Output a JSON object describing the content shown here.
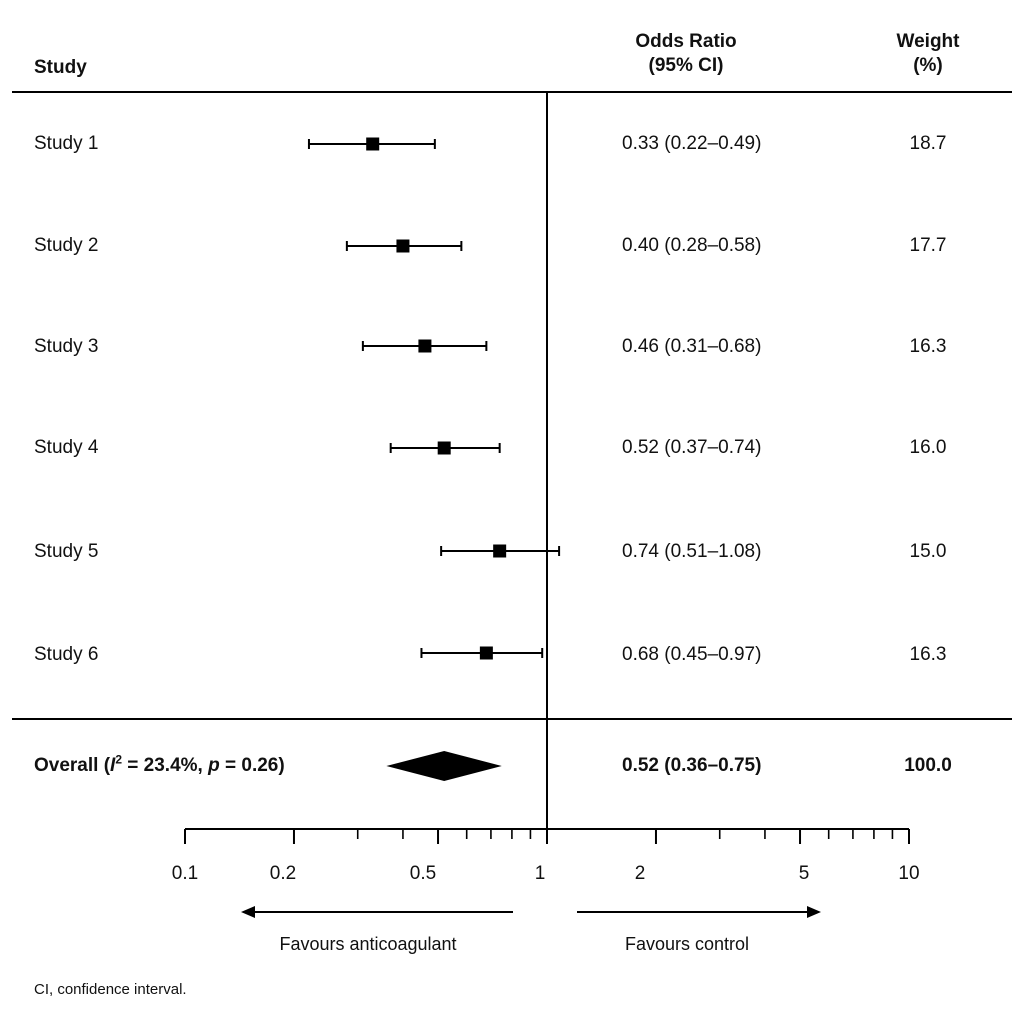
{
  "header": {
    "study_label": "Study",
    "or_label_line1": "Odds Ratio",
    "or_label_line2": "(95% CI)",
    "weight_label_line1": "Weight",
    "weight_label_line2": "(%)"
  },
  "chart_data": {
    "type": "forest",
    "x_scale": "log",
    "xlim": [
      0.1,
      10
    ],
    "reference_line": 1,
    "tick_labels": [
      "0.1",
      "0.2",
      "0.5",
      "1",
      "2",
      "5",
      "10"
    ],
    "tick_values": [
      0.1,
      0.2,
      0.5,
      1,
      2,
      5,
      10
    ],
    "studies": [
      {
        "label": "Study 1",
        "or": 0.33,
        "lower": 0.22,
        "upper": 0.49,
        "or_text": "0.33 (0.22–0.49)",
        "weight": 18.7,
        "weight_text": "18.7"
      },
      {
        "label": "Study 2",
        "or": 0.4,
        "lower": 0.28,
        "upper": 0.58,
        "or_text": "0.40 (0.28–0.58)",
        "weight": 17.7,
        "weight_text": "17.7"
      },
      {
        "label": "Study 3",
        "or": 0.46,
        "lower": 0.31,
        "upper": 0.68,
        "or_text": "0.46 (0.31–0.68)",
        "weight": 16.3,
        "weight_text": "16.3"
      },
      {
        "label": "Study 4",
        "or": 0.52,
        "lower": 0.37,
        "upper": 0.74,
        "or_text": "0.52 (0.37–0.74)",
        "weight": 16.0,
        "weight_text": "16.0"
      },
      {
        "label": "Study 5",
        "or": 0.74,
        "lower": 0.51,
        "upper": 1.08,
        "or_text": "0.74 (0.51–1.08)",
        "weight": 15.0,
        "weight_text": "15.0"
      },
      {
        "label": "Study 6",
        "or": 0.68,
        "lower": 0.45,
        "upper": 0.97,
        "or_text": "0.68 (0.45–0.97)",
        "weight": 16.3,
        "weight_text": "16.3"
      }
    ],
    "overall": {
      "label_prefix": "Overall (",
      "label_i": "I",
      "label_sup": "2",
      "label_mid": " = 23.4%, ",
      "label_p": "p",
      "label_suffix": " = 0.26)",
      "i2": 23.4,
      "p": 0.26,
      "or": 0.52,
      "lower": 0.36,
      "upper": 0.75,
      "or_text": "0.52 (0.36–0.75)",
      "weight": 100.0,
      "weight_text": "100.0"
    },
    "favours_left": "Favours  anticoagulant",
    "favours_right": "Favours control"
  },
  "footnote": "CI, confidence interval."
}
